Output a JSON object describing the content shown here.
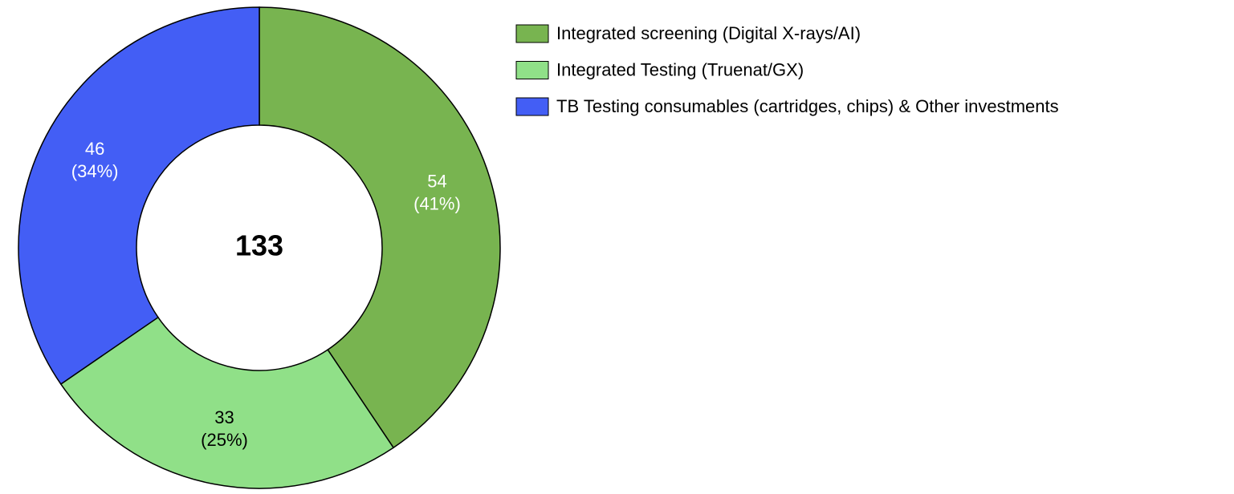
{
  "chart_data": {
    "type": "donut",
    "total": 133,
    "series": [
      {
        "name": "Integrated screening (Digital X-rays/AI)",
        "color": "#78b450"
      },
      {
        "name": "Integrated Testing (Truenat/GX)",
        "color": "#90e088"
      },
      {
        "name": "TB Testing consumables (cartridges, chips) & Other investments",
        "color": "#435ef5"
      }
    ],
    "values": [
      54,
      33,
      46
    ],
    "percent_labels": [
      "(41%)",
      "(25%)",
      "(34%)"
    ],
    "legend": "top-right"
  }
}
